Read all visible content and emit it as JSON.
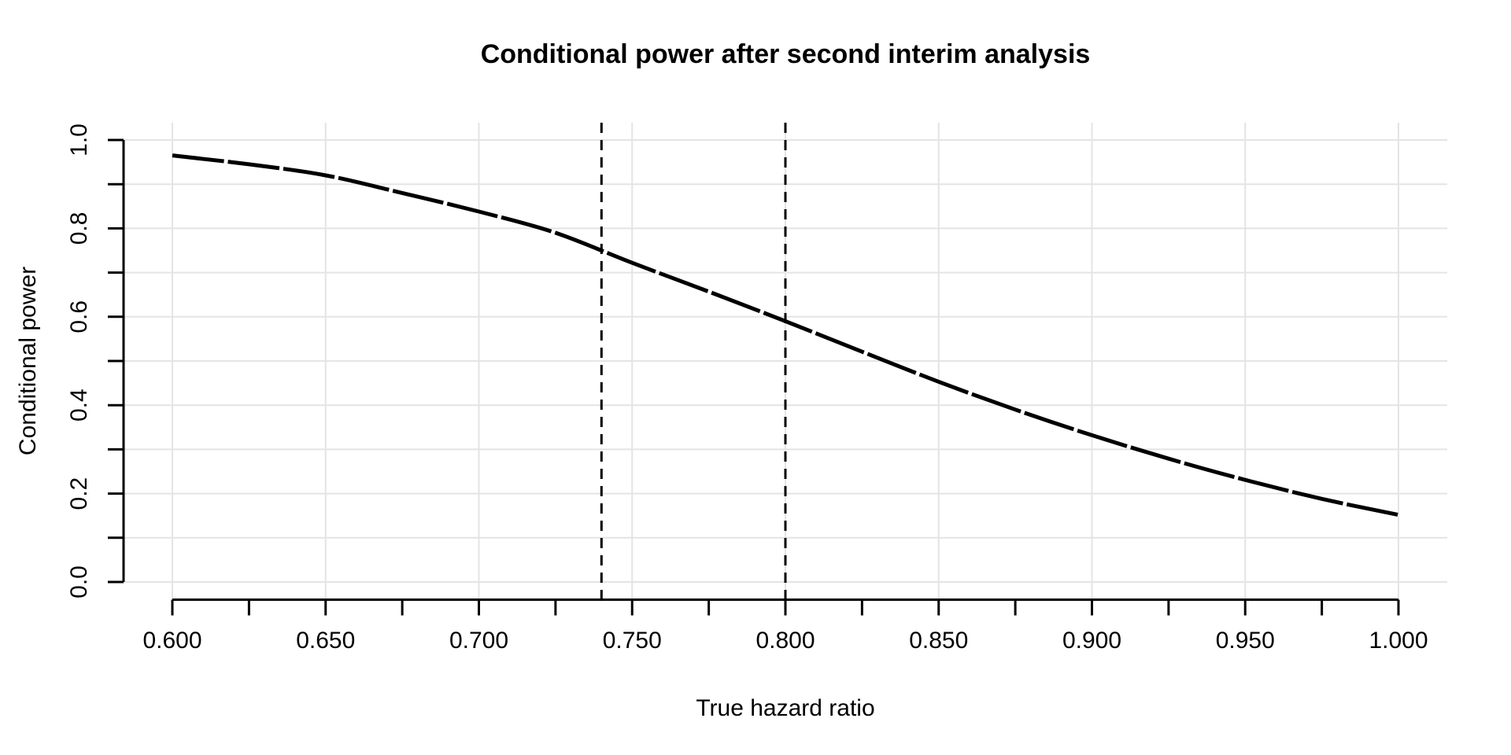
{
  "chart_data": {
    "type": "line",
    "title": "Conditional power after second interim analysis",
    "xlabel": "True hazard ratio",
    "ylabel": "Conditional power",
    "xlim": [
      0.6,
      1.0
    ],
    "ylim": [
      0.0,
      1.0
    ],
    "grid": true,
    "legend": "none",
    "x_major_ticks": {
      "values": [
        0.6,
        0.65,
        0.7,
        0.75,
        0.8,
        0.85,
        0.9,
        0.95,
        1.0
      ],
      "labels": [
        "0.600",
        "0.650",
        "0.700",
        "0.750",
        "0.800",
        "0.850",
        "0.900",
        "0.950",
        "1.000"
      ]
    },
    "x_minor_ticks": [
      0.6,
      0.625,
      0.65,
      0.675,
      0.7,
      0.725,
      0.75,
      0.775,
      0.8,
      0.825,
      0.85,
      0.875,
      0.9,
      0.925,
      0.95,
      0.975,
      1.0
    ],
    "y_ticks": [
      0.0,
      0.1,
      0.2,
      0.3,
      0.4,
      0.5,
      0.6,
      0.7,
      0.8,
      0.9,
      1.0
    ],
    "y_labeled_ticks": {
      "values": [
        0.0,
        0.2,
        0.4,
        0.6,
        0.8,
        1.0
      ],
      "labels": [
        "0.0",
        "0.2",
        "0.4",
        "0.6",
        "0.8",
        "1.0"
      ]
    },
    "series": [
      {
        "name": "conditional power curve",
        "x": [
          0.6,
          0.625,
          0.65,
          0.675,
          0.7,
          0.725,
          0.75,
          0.775,
          0.8,
          0.825,
          0.85,
          0.875,
          0.9,
          0.925,
          0.95,
          0.975,
          1.0
        ],
        "y": [
          0.965,
          0.945,
          0.92,
          0.88,
          0.838,
          0.79,
          0.722,
          0.657,
          0.59,
          0.521,
          0.453,
          0.39,
          0.332,
          0.279,
          0.231,
          0.188,
          0.152
        ]
      }
    ],
    "vlines": [
      {
        "x": 0.74,
        "style": "dashed"
      },
      {
        "x": 0.8,
        "style": "dashed"
      }
    ],
    "colors": {
      "curve": "#000000",
      "gridline": "#e4e4e4",
      "axis": "#000000",
      "dashed_line": "#000000",
      "background": "#ffffff"
    }
  }
}
